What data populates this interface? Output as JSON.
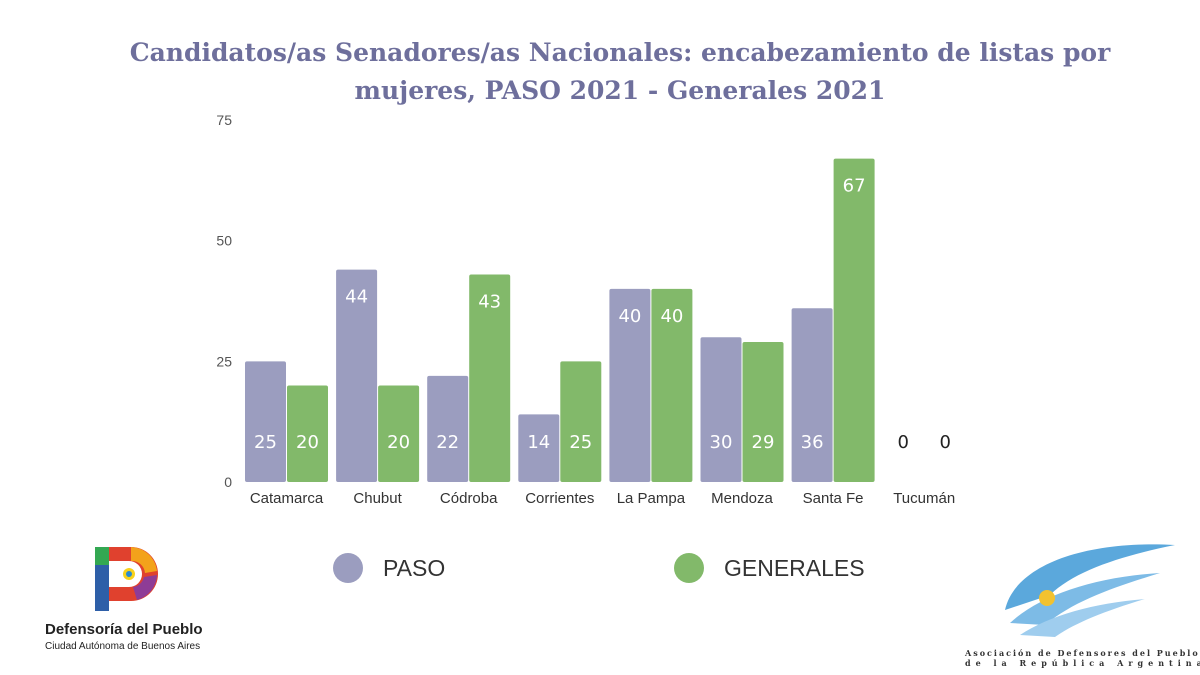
{
  "chart_data": {
    "type": "bar",
    "title": "Candidatos/as Senadores/as Nacionales: encabezamiento de listas por mujeres, PASO 2021 - Generales 2021",
    "categories": [
      "Catamarca",
      "Chubut",
      "Códroba",
      "Corrientes",
      "La Pampa",
      "Mendoza",
      "Santa Fe",
      "Tucumán"
    ],
    "series": [
      {
        "name": "PASO",
        "color": "#9b9dbf",
        "values": [
          25,
          44,
          22,
          14,
          40,
          30,
          36,
          0
        ]
      },
      {
        "name": "GENERALES",
        "color": "#82b96a",
        "values": [
          20,
          20,
          43,
          25,
          40,
          29,
          67,
          0
        ]
      }
    ],
    "ylim": [
      0,
      75
    ],
    "yticks": [
      "0",
      "25",
      "50",
      "75"
    ],
    "grid": false,
    "legend": "bottom",
    "xlabel": "",
    "ylabel": ""
  },
  "logos": {
    "left_name": "Defensoría del Pueblo",
    "left_sub": "Ciudad Autónoma de Buenos Aires",
    "right_line1": "Asociación de Defensores del Pueblo",
    "right_line2": "de la República Argentina"
  }
}
